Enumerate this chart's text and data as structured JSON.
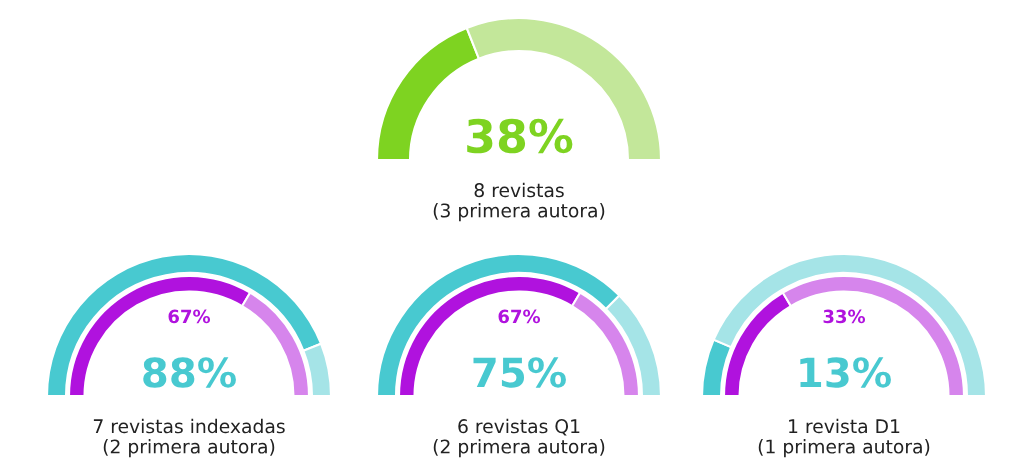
{
  "chart_data": [
    {
      "type": "donut",
      "categories": [
        null,
        null
      ],
      "values": [
        38,
        62
      ],
      "colors": [
        "#7ed321",
        "#c3e79a"
      ],
      "annotations": [
        "38%",
        "8 revistas\n(3 primera autora)"
      ]
    },
    {
      "type": "donut",
      "categories": [
        null,
        null
      ],
      "series": [
        {
          "values": [
            88,
            12
          ],
          "colors": [
            "#48c9d0",
            "#a5e4e7"
          ]
        },
        {
          "values": [
            67,
            33
          ],
          "colors": [
            "#b012de",
            "#d685ec"
          ]
        }
      ],
      "annotations": [
        "88%",
        "67%",
        "7 revistas indexadas\n(2 primera autora)"
      ]
    },
    {
      "type": "donut",
      "categories": [
        null,
        null
      ],
      "series": [
        {
          "values": [
            75,
            25
          ],
          "colors": [
            "#48c9d0",
            "#a5e4e7"
          ]
        },
        {
          "values": [
            67,
            33
          ],
          "colors": [
            "#b012de",
            "#d685ec"
          ]
        }
      ],
      "annotations": [
        "75%",
        "67%",
        "6 revistas Q1\n(2 primera autora)"
      ]
    },
    {
      "type": "donut",
      "categories": [
        null,
        null
      ],
      "series": [
        {
          "values": [
            13,
            87
          ],
          "colors": [
            "#48c9d0",
            "#a5e4e7"
          ]
        },
        {
          "values": [
            33,
            67
          ],
          "colors": [
            "#b012de",
            "#d685ec"
          ]
        }
      ],
      "annotations": [
        "13%",
        "33%",
        "1 revista D1\n(1 primera autora)"
      ]
    }
  ]
}
